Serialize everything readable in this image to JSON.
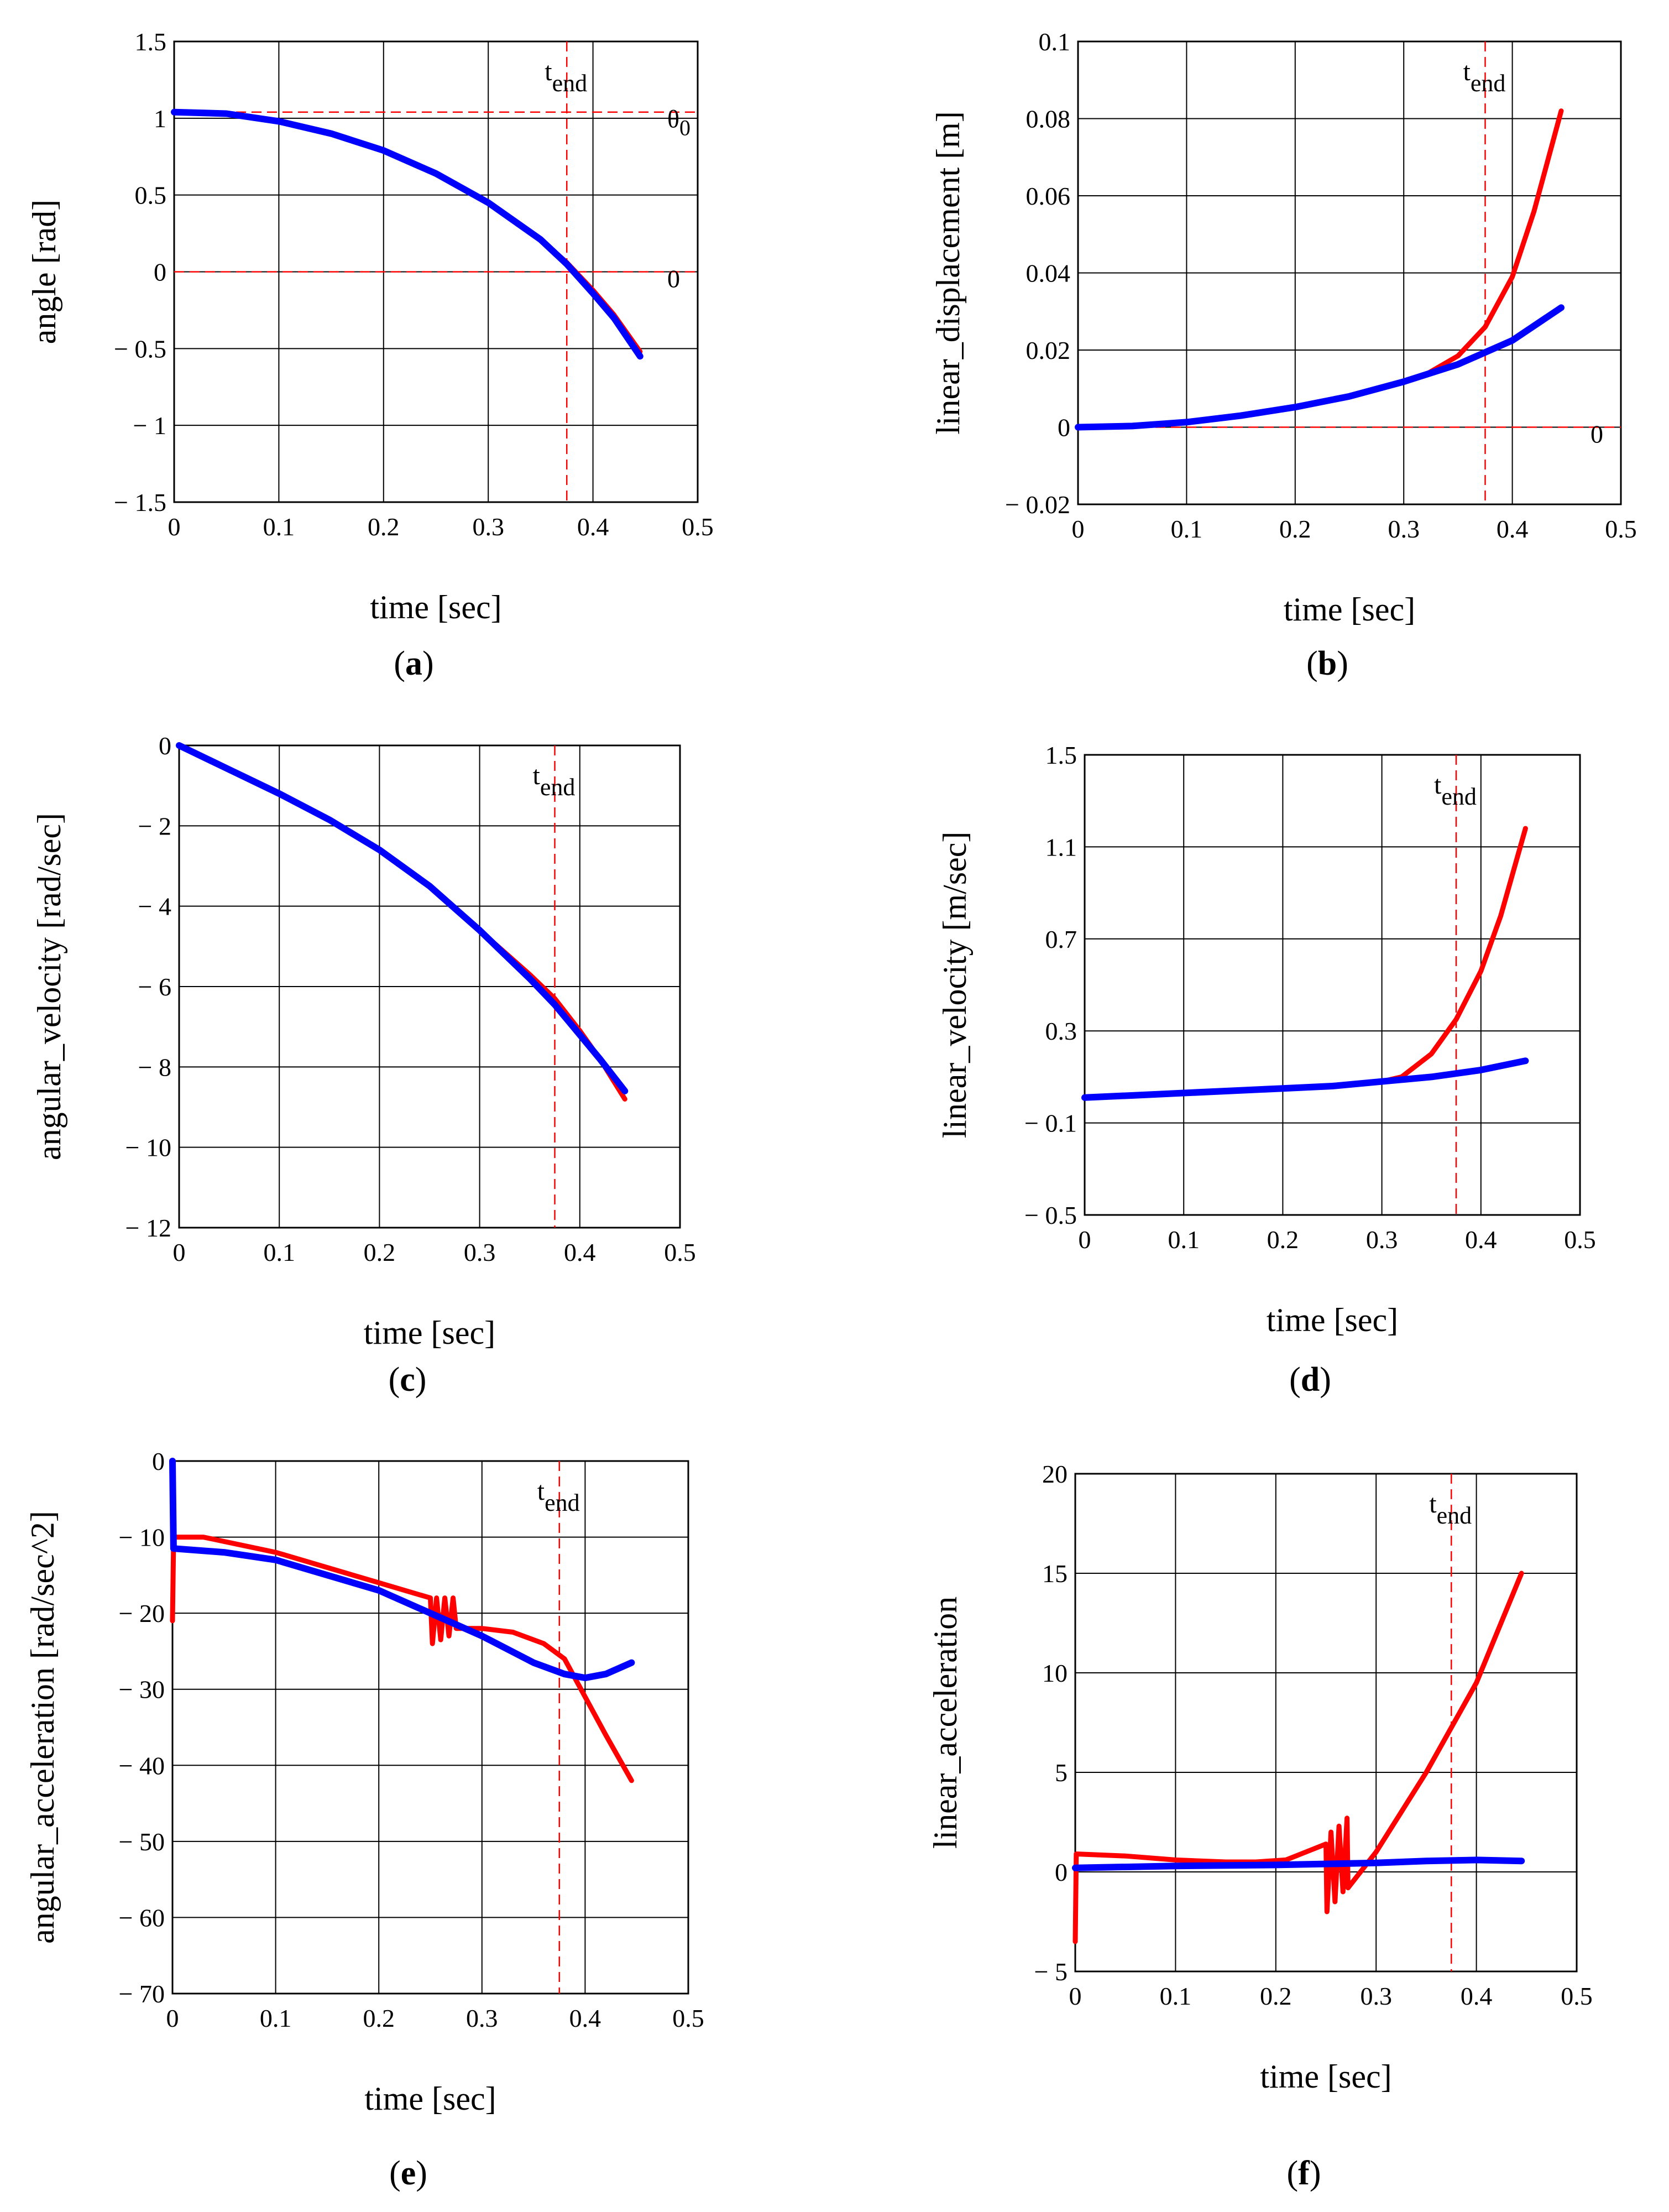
{
  "colors": {
    "series_red": "#ff0000",
    "series_blue": "#0000ff",
    "grid": "#000000",
    "tend_line": "#ff0000"
  },
  "tend_label": {
    "main": "t",
    "sub": "end"
  },
  "chart_data": [
    {
      "id": "a",
      "type": "line",
      "panel_label": "a",
      "xlabel": "time [sec]",
      "ylabel": "angle [rad]",
      "xlim": [
        0,
        0.5
      ],
      "ylim": [
        -1.5,
        1.5
      ],
      "xticks": [
        0,
        0.1,
        0.2,
        0.3,
        0.4,
        0.5
      ],
      "xtick_labels": [
        "0",
        "0.1",
        "0.2",
        "0.3",
        "0.4",
        "0.5"
      ],
      "yticks": [
        -1.5,
        -1,
        -0.5,
        0,
        0.5,
        1,
        1.5
      ],
      "ytick_labels": [
        "− 1.5",
        "− 1",
        "− 0.5",
        "0",
        "0.5",
        "1",
        "1.5"
      ],
      "grid": true,
      "tend": 0.375,
      "reference_lines": [
        {
          "y": 1.04,
          "label": "θ",
          "sub": "0"
        },
        {
          "y": 0,
          "label": "0",
          "sub": ""
        }
      ],
      "series": [
        {
          "name": "red",
          "x": [
            0,
            0.05,
            0.1,
            0.15,
            0.2,
            0.25,
            0.3,
            0.35,
            0.375,
            0.4,
            0.42,
            0.445
          ],
          "y": [
            1.04,
            1.03,
            0.98,
            0.9,
            0.79,
            0.64,
            0.45,
            0.21,
            0.06,
            -0.12,
            -0.28,
            -0.52
          ]
        },
        {
          "name": "blue",
          "x": [
            0,
            0.05,
            0.1,
            0.15,
            0.2,
            0.25,
            0.3,
            0.35,
            0.375,
            0.4,
            0.42,
            0.445
          ],
          "y": [
            1.04,
            1.03,
            0.98,
            0.9,
            0.79,
            0.64,
            0.45,
            0.21,
            0.05,
            -0.14,
            -0.3,
            -0.55
          ]
        }
      ]
    },
    {
      "id": "b",
      "type": "line",
      "panel_label": "b",
      "xlabel": "time [sec]",
      "ylabel": "linear_displacement [m]",
      "xlim": [
        0,
        0.5
      ],
      "ylim": [
        -0.02,
        0.1
      ],
      "xticks": [
        0,
        0.1,
        0.2,
        0.3,
        0.4,
        0.5
      ],
      "xtick_labels": [
        "0",
        "0.1",
        "0.2",
        "0.3",
        "0.4",
        "0.5"
      ],
      "yticks": [
        -0.02,
        0,
        0.02,
        0.04,
        0.06,
        0.08,
        0.1
      ],
      "ytick_labels": [
        "− 0.02",
        "0",
        "0.02",
        "0.04",
        "0.06",
        "0.08",
        "0.1"
      ],
      "grid": true,
      "tend": 0.375,
      "reference_lines": [
        {
          "y": 0,
          "label": "0",
          "sub": ""
        }
      ],
      "series": [
        {
          "name": "red",
          "x": [
            0,
            0.05,
            0.1,
            0.15,
            0.2,
            0.25,
            0.3,
            0.32,
            0.35,
            0.375,
            0.4,
            0.42,
            0.445
          ],
          "y": [
            0,
            0.0003,
            0.0013,
            0.003,
            0.0052,
            0.008,
            0.0118,
            0.0136,
            0.0185,
            0.026,
            0.039,
            0.056,
            0.082
          ]
        },
        {
          "name": "blue",
          "x": [
            0,
            0.05,
            0.1,
            0.15,
            0.2,
            0.25,
            0.3,
            0.35,
            0.4,
            0.445
          ],
          "y": [
            0,
            0.0003,
            0.0013,
            0.003,
            0.0052,
            0.008,
            0.0118,
            0.0163,
            0.0225,
            0.031
          ]
        }
      ]
    },
    {
      "id": "c",
      "type": "line",
      "panel_label": "c",
      "xlabel": "time [sec]",
      "ylabel": "angular_velocity [rad/sec]",
      "xlim": [
        0,
        0.5
      ],
      "ylim": [
        -12,
        0
      ],
      "xticks": [
        0,
        0.1,
        0.2,
        0.3,
        0.4,
        0.5
      ],
      "xtick_labels": [
        "0",
        "0.1",
        "0.2",
        "0.3",
        "0.4",
        "0.5"
      ],
      "yticks": [
        -12,
        -10,
        -8,
        -6,
        -4,
        -2,
        0
      ],
      "ytick_labels": [
        "− 12",
        "− 10",
        "− 8",
        "− 6",
        "− 4",
        "− 2",
        "0"
      ],
      "grid": true,
      "tend": 0.375,
      "reference_lines": [],
      "series": [
        {
          "name": "red",
          "x": [
            0,
            0.05,
            0.1,
            0.15,
            0.2,
            0.25,
            0.3,
            0.35,
            0.375,
            0.4,
            0.42,
            0.445
          ],
          "y": [
            0,
            -0.6,
            -1.2,
            -1.85,
            -2.6,
            -3.5,
            -4.6,
            -5.7,
            -6.3,
            -7.1,
            -7.8,
            -8.8
          ]
        },
        {
          "name": "blue",
          "x": [
            0,
            0.05,
            0.1,
            0.15,
            0.2,
            0.25,
            0.3,
            0.35,
            0.375,
            0.4,
            0.42,
            0.445
          ],
          "y": [
            0,
            -0.6,
            -1.2,
            -1.85,
            -2.6,
            -3.5,
            -4.6,
            -5.8,
            -6.45,
            -7.2,
            -7.8,
            -8.6
          ]
        }
      ]
    },
    {
      "id": "d",
      "type": "line",
      "panel_label": "d",
      "xlabel": "time [sec]",
      "ylabel": "linear_velocity [m/sec]",
      "xlim": [
        0,
        0.5
      ],
      "ylim": [
        -0.5,
        1.5
      ],
      "xticks": [
        0,
        0.1,
        0.2,
        0.3,
        0.4,
        0.5
      ],
      "xtick_labels": [
        "0",
        "0.1",
        "0.2",
        "0.3",
        "0.4",
        "0.5"
      ],
      "yticks": [
        -0.5,
        -0.1,
        0.3,
        0.7,
        1.1,
        1.5
      ],
      "ytick_labels": [
        "− 0.5",
        "− 0.1",
        "0.3",
        "0.7",
        "1.1",
        "1.5"
      ],
      "grid": true,
      "tend": 0.375,
      "reference_lines": [],
      "series": [
        {
          "name": "red",
          "x": [
            0,
            0.05,
            0.1,
            0.15,
            0.2,
            0.25,
            0.3,
            0.32,
            0.35,
            0.375,
            0.4,
            0.42,
            0.445
          ],
          "y": [
            0.01,
            0.02,
            0.03,
            0.04,
            0.05,
            0.06,
            0.08,
            0.1,
            0.2,
            0.35,
            0.56,
            0.8,
            1.18
          ]
        },
        {
          "name": "blue",
          "x": [
            0,
            0.05,
            0.1,
            0.15,
            0.2,
            0.25,
            0.3,
            0.35,
            0.4,
            0.445
          ],
          "y": [
            0.01,
            0.02,
            0.03,
            0.04,
            0.05,
            0.06,
            0.08,
            0.1,
            0.13,
            0.17
          ]
        }
      ]
    },
    {
      "id": "e",
      "type": "line",
      "panel_label": "e",
      "xlabel": "time [sec]",
      "ylabel": "angular_acceleration [rad/sec^2]",
      "xlim": [
        0,
        0.5
      ],
      "ylim": [
        -70,
        0
      ],
      "xticks": [
        0,
        0.1,
        0.2,
        0.3,
        0.4,
        0.5
      ],
      "xtick_labels": [
        "0",
        "0.1",
        "0.2",
        "0.3",
        "0.4",
        "0.5"
      ],
      "yticks": [
        -70,
        -60,
        -50,
        -40,
        -30,
        -20,
        -10,
        0
      ],
      "ytick_labels": [
        "− 70",
        "− 60",
        "− 50",
        "− 40",
        "− 30",
        "− 20",
        "− 10",
        "0"
      ],
      "grid": true,
      "tend": 0.375,
      "reference_lines": [],
      "series": [
        {
          "name": "red",
          "x": [
            0,
            0.001,
            0.002,
            0.03,
            0.1,
            0.15,
            0.2,
            0.25,
            0.252,
            0.256,
            0.26,
            0.264,
            0.268,
            0.272,
            0.275,
            0.3,
            0.33,
            0.36,
            0.38,
            0.4,
            0.42,
            0.445
          ],
          "y": [
            -21,
            -11,
            -10,
            -10,
            -12,
            -14,
            -16,
            -18,
            -24,
            -18,
            -23.5,
            -18,
            -23,
            -18,
            -22,
            -22,
            -22.5,
            -24,
            -26,
            -31,
            -36,
            -42
          ]
        },
        {
          "name": "blue",
          "x": [
            0,
            0.001,
            0.05,
            0.1,
            0.15,
            0.2,
            0.25,
            0.3,
            0.35,
            0.38,
            0.4,
            0.42,
            0.445
          ],
          "y": [
            0,
            -11.5,
            -12,
            -13,
            -15,
            -17,
            -20,
            -23,
            -26.5,
            -28,
            -28.5,
            -28,
            -26.5
          ]
        }
      ]
    },
    {
      "id": "f",
      "type": "line",
      "panel_label": "f",
      "xlabel": "time [sec]",
      "ylabel": "linear_acceleration",
      "xlim": [
        0,
        0.5
      ],
      "ylim": [
        -5,
        20
      ],
      "xticks": [
        0,
        0.1,
        0.2,
        0.3,
        0.4,
        0.5
      ],
      "xtick_labels": [
        "0",
        "0.1",
        "0.2",
        "0.3",
        "0.4",
        "0.5"
      ],
      "yticks": [
        -5,
        0,
        5,
        10,
        15,
        20
      ],
      "ytick_labels": [
        "− 5",
        "0",
        "5",
        "10",
        "15",
        "20"
      ],
      "grid": true,
      "tend": 0.375,
      "reference_lines": [],
      "series": [
        {
          "name": "red",
          "x": [
            0,
            0.001,
            0.002,
            0.05,
            0.1,
            0.15,
            0.18,
            0.21,
            0.23,
            0.25,
            0.251,
            0.255,
            0.259,
            0.263,
            0.267,
            0.271,
            0.272,
            0.3,
            0.35,
            0.4,
            0.445
          ],
          "y": [
            -3.5,
            0.9,
            0.9,
            0.8,
            0.6,
            0.5,
            0.5,
            0.6,
            1.0,
            1.4,
            -2.0,
            2.0,
            -1.5,
            2.3,
            -1.0,
            2.7,
            -0.8,
            1.0,
            5.0,
            9.5,
            15
          ]
        },
        {
          "name": "blue",
          "x": [
            0,
            0.1,
            0.2,
            0.3,
            0.35,
            0.4,
            0.445
          ],
          "y": [
            0.2,
            0.3,
            0.35,
            0.45,
            0.55,
            0.6,
            0.55
          ]
        }
      ]
    }
  ]
}
